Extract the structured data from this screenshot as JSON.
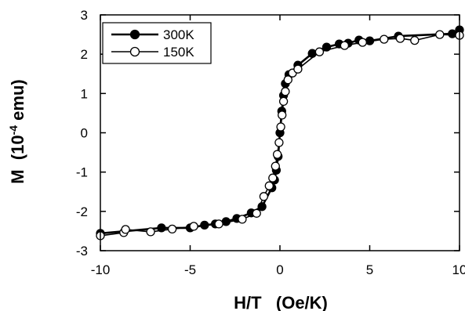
{
  "chart_data": {
    "type": "scatter",
    "xlabel": "H/T   (Oe/K)",
    "ylabel_main": "M  (10",
    "ylabel_sup": "-4",
    "ylabel_end": " emu)",
    "xlim": [
      -10,
      10
    ],
    "ylim": [
      -3,
      3
    ],
    "xticks": [
      "-10",
      "-5",
      "0",
      "5",
      "10"
    ],
    "yticks": [
      "3",
      "2",
      "1",
      "0",
      "-1",
      "-2",
      "-3"
    ],
    "grid": false,
    "legend_position": "top-left",
    "series": [
      {
        "name": "300K",
        "marker": "filled-circle",
        "color": "#000000",
        "points": [
          [
            -10.0,
            -2.56
          ],
          [
            -6.6,
            -2.42
          ],
          [
            -5.0,
            -2.42
          ],
          [
            -4.2,
            -2.35
          ],
          [
            -3.6,
            -2.32
          ],
          [
            -3.0,
            -2.26
          ],
          [
            -2.4,
            -2.18
          ],
          [
            -1.6,
            -2.04
          ],
          [
            -1.0,
            -1.88
          ],
          [
            -0.45,
            -1.4
          ],
          [
            -0.3,
            -1.2
          ],
          [
            -0.2,
            -0.95
          ],
          [
            -0.1,
            -0.6
          ],
          [
            0.0,
            0.0
          ],
          [
            0.1,
            0.55
          ],
          [
            0.2,
            0.95
          ],
          [
            0.3,
            1.25
          ],
          [
            0.5,
            1.48
          ],
          [
            1.0,
            1.72
          ],
          [
            1.8,
            2.02
          ],
          [
            2.6,
            2.18
          ],
          [
            3.3,
            2.26
          ],
          [
            3.8,
            2.28
          ],
          [
            4.4,
            2.36
          ],
          [
            5.0,
            2.34
          ],
          [
            6.6,
            2.46
          ],
          [
            9.6,
            2.52
          ],
          [
            10.0,
            2.62
          ]
        ]
      },
      {
        "name": "150K",
        "marker": "open-circle",
        "color": "#000000",
        "points": [
          [
            -10.0,
            -2.62
          ],
          [
            -8.7,
            -2.54
          ],
          [
            -8.6,
            -2.46
          ],
          [
            -7.2,
            -2.52
          ],
          [
            -6.0,
            -2.45
          ],
          [
            -4.8,
            -2.38
          ],
          [
            -3.4,
            -2.32
          ],
          [
            -2.1,
            -2.2
          ],
          [
            -1.3,
            -2.05
          ],
          [
            -0.9,
            -1.62
          ],
          [
            -0.6,
            -1.35
          ],
          [
            -0.4,
            -1.15
          ],
          [
            -0.25,
            -0.85
          ],
          [
            -0.15,
            -0.55
          ],
          [
            -0.05,
            -0.25
          ],
          [
            0.05,
            0.15
          ],
          [
            0.12,
            0.45
          ],
          [
            0.2,
            0.8
          ],
          [
            0.3,
            1.05
          ],
          [
            0.45,
            1.35
          ],
          [
            0.7,
            1.52
          ],
          [
            1.0,
            1.62
          ],
          [
            2.2,
            2.06
          ],
          [
            3.6,
            2.22
          ],
          [
            4.6,
            2.3
          ],
          [
            5.8,
            2.38
          ],
          [
            6.7,
            2.4
          ],
          [
            7.5,
            2.35
          ],
          [
            8.9,
            2.5
          ],
          [
            10.0,
            2.48
          ]
        ]
      }
    ]
  }
}
